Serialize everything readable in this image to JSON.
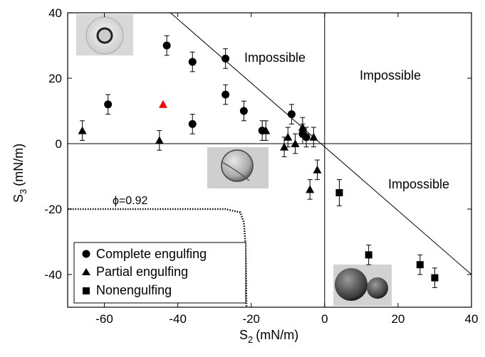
{
  "chart_data": {
    "type": "scatter",
    "xlabel": "S",
    "xlabel_sub": "2",
    "xlabel_unit": "(mN/m)",
    "ylabel": "S",
    "ylabel_sub": "3",
    "ylabel_unit": "(mN/m)",
    "xlim": [
      -70,
      40
    ],
    "ylim": [
      -50,
      40
    ],
    "xticks": [
      -60,
      -40,
      -20,
      0,
      20,
      40
    ],
    "yticks": [
      -40,
      -20,
      0,
      20,
      40
    ],
    "grid": false,
    "legend_position": "bottom-left",
    "region_labels": [
      "Impossible",
      "Impossible",
      "Impossible"
    ],
    "curve_label": "ϕ=0.92",
    "series": [
      {
        "name": "Complete engulfing",
        "marker": "circle",
        "points": [
          {
            "x": -43,
            "y": 30,
            "err": 3
          },
          {
            "x": -36,
            "y": 25,
            "err": 3
          },
          {
            "x": -27,
            "y": 26,
            "err": 3
          },
          {
            "x": -59,
            "y": 12,
            "err": 3
          },
          {
            "x": -27,
            "y": 15,
            "err": 3
          },
          {
            "x": -36,
            "y": 6,
            "err": 3
          },
          {
            "x": -22,
            "y": 10,
            "err": 3
          },
          {
            "x": -9,
            "y": 9,
            "err": 3
          },
          {
            "x": -17,
            "y": 4,
            "err": 3
          },
          {
            "x": -6,
            "y": 3,
            "err": 3
          },
          {
            "x": -5,
            "y": 2,
            "err": 3
          }
        ]
      },
      {
        "name": "Partial engulfing",
        "marker": "triangle",
        "points": [
          {
            "x": -66,
            "y": 4,
            "err": 3
          },
          {
            "x": -45,
            "y": 1,
            "err": 3
          },
          {
            "x": -16,
            "y": 4,
            "err": 3
          },
          {
            "x": -10,
            "y": 2,
            "err": 3
          },
          {
            "x": -11,
            "y": -1,
            "err": 3
          },
          {
            "x": -8,
            "y": 0,
            "err": 3
          },
          {
            "x": -6,
            "y": 5,
            "err": 3
          },
          {
            "x": -3,
            "y": 2,
            "err": 3
          },
          {
            "x": -2,
            "y": -8,
            "err": 3
          },
          {
            "x": -4,
            "y": -14,
            "err": 3
          }
        ],
        "highlight": {
          "x": -44,
          "y": 12,
          "color": "#ff0000"
        }
      },
      {
        "name": "Nonengulfing",
        "marker": "square",
        "points": [
          {
            "x": 4,
            "y": -15,
            "err": 4
          },
          {
            "x": 12,
            "y": -34,
            "err": 3
          },
          {
            "x": 26,
            "y": -37,
            "err": 3
          },
          {
            "x": 30,
            "y": -41,
            "err": 3
          }
        ]
      }
    ],
    "boundary_lines": [
      {
        "from": [
          -42,
          40
        ],
        "to": [
          40,
          -40
        ]
      },
      {
        "from": [
          0,
          40
        ],
        "to": [
          0,
          -50
        ]
      },
      {
        "from": [
          -70,
          0
        ],
        "to": [
          40,
          0
        ]
      }
    ],
    "dotted_curve": [
      [
        -70,
        -20
      ],
      [
        -27,
        -20
      ],
      [
        -23,
        -21
      ],
      [
        -22,
        -24
      ],
      [
        -21.6,
        -30
      ],
      [
        -21.4,
        -40
      ],
      [
        -21.3,
        -50
      ]
    ]
  },
  "images": [
    {
      "name": "inset-complete-engulfing-photo",
      "depicts": "complete engulfing droplet"
    },
    {
      "name": "inset-partial-engulfing-photo",
      "depicts": "partial engulfing droplet"
    },
    {
      "name": "inset-nonengulfing-photo",
      "depicts": "nonengulfing droplets"
    }
  ]
}
